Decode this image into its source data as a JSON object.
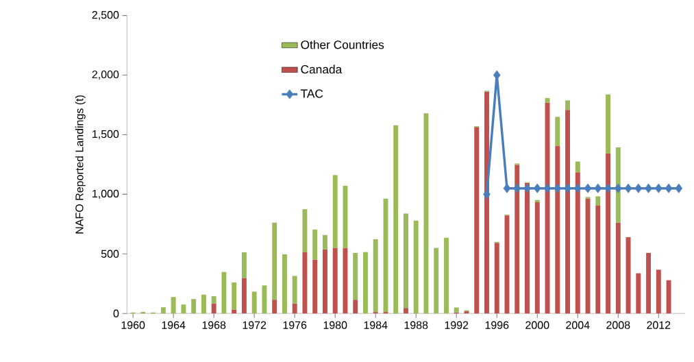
{
  "chart_data": {
    "type": "bar",
    "stacked": true,
    "ylabel": "NAFO Reported Landings (t)",
    "categories": [
      "1960",
      null,
      null,
      null,
      "1964",
      null,
      null,
      null,
      "1968",
      null,
      null,
      null,
      "1972",
      null,
      null,
      null,
      "1976",
      null,
      null,
      null,
      "1980",
      null,
      null,
      null,
      "1984",
      null,
      null,
      null,
      "1988",
      null,
      null,
      null,
      "1992",
      null,
      null,
      null,
      "1996",
      null,
      null,
      null,
      "2000",
      null,
      null,
      null,
      "2004",
      null,
      null,
      null,
      "2008",
      null,
      null,
      null,
      "2012",
      null,
      null
    ],
    "series": [
      {
        "name": "Canada",
        "color": "#c0504d",
        "values": [
          0,
          0,
          0,
          0,
          0,
          0,
          0,
          0,
          83,
          0,
          33,
          298,
          0,
          0,
          115,
          0,
          83,
          513,
          452,
          538,
          550,
          550,
          115,
          0,
          12,
          12,
          0,
          46,
          0,
          0,
          0,
          0,
          8,
          19,
          1565,
          1861,
          592,
          823,
          1246,
          1095,
          933,
          1769,
          1408,
          1708,
          1185,
          965,
          908,
          1344,
          762,
          640,
          337,
          508,
          367,
          279,
          null
        ]
      },
      {
        "name": "Other Countries",
        "color": "#9bbb59",
        "values": [
          8,
          13,
          8,
          52,
          138,
          75,
          121,
          158,
          61,
          348,
          227,
          215,
          183,
          235,
          647,
          496,
          232,
          362,
          252,
          120,
          611,
          521,
          393,
          515,
          611,
          951,
          1579,
          792,
          779,
          1679,
          550,
          635,
          42,
          8,
          6,
          8,
          8,
          6,
          12,
          5,
          19,
          39,
          242,
          80,
          90,
          12,
          75,
          494,
          632,
          0,
          0,
          0,
          0,
          0,
          null
        ]
      },
      {
        "name": "TAC",
        "type": "line",
        "color": "#4a7ebb",
        "marker": "diamond",
        "values": [
          null,
          null,
          null,
          null,
          null,
          null,
          null,
          null,
          null,
          null,
          null,
          null,
          null,
          null,
          null,
          null,
          null,
          null,
          null,
          null,
          null,
          null,
          null,
          null,
          null,
          null,
          null,
          null,
          null,
          null,
          null,
          null,
          null,
          null,
          null,
          1000,
          2000,
          1050,
          1050,
          1050,
          1050,
          1050,
          1050,
          1050,
          1050,
          1050,
          1050,
          1050,
          1050,
          1050,
          1050,
          1050,
          1050,
          1050,
          1050
        ]
      }
    ],
    "ylim": [
      0,
      2500
    ],
    "yticks": [
      0,
      500,
      {
        "value": 1000,
        "label": "1,000"
      },
      {
        "value": 1500,
        "label": "1,500"
      },
      {
        "value": 2000,
        "label": "2,000"
      },
      {
        "value": 2500,
        "label": "2,500"
      }
    ],
    "legend": "top"
  }
}
